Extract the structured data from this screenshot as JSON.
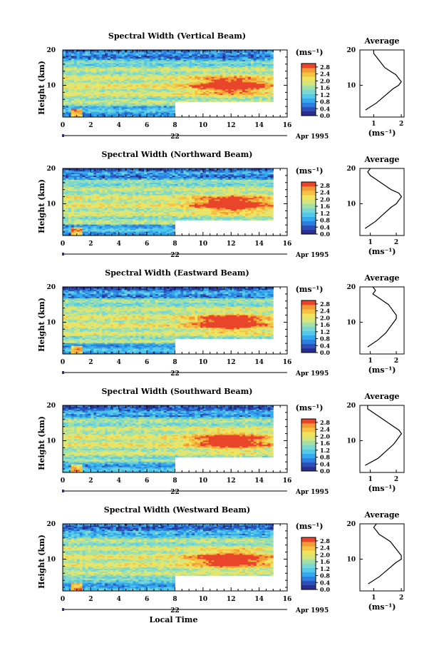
{
  "figure": {
    "xlabel": "Local Time",
    "date_day": "22",
    "date_label": "Apr 1995",
    "colorbar_unit": "(ms⁻¹)",
    "average_title": "Average",
    "average_xunit": "(ms⁻¹)"
  },
  "colors": {
    "colormap": [
      "#2a2e8e",
      "#2f4fb8",
      "#2a7fe0",
      "#33aaee",
      "#55c8e8",
      "#7ad8d0",
      "#a6e0a4",
      "#d6e67c",
      "#f0e45e",
      "#f6c244",
      "#f29a33",
      "#e8452a"
    ]
  },
  "chart_data": [
    {
      "type": "heatmap",
      "title": "Spectral Width (Vertical Beam)",
      "ylabel": "Height (km)",
      "x_ticks": [
        "0",
        "2",
        "4",
        "6",
        "8",
        "10",
        "12",
        "14",
        "16"
      ],
      "y_ticks": [
        "10",
        "20"
      ],
      "colorbar_ticks": [
        "2.8",
        "2.4",
        "2.0",
        "1.6",
        "1.2",
        "0.8",
        "0.4",
        "0.0"
      ],
      "xlim": [
        0,
        16
      ],
      "ylim": [
        1,
        20
      ],
      "clim": [
        0,
        3.0
      ],
      "data_x_end": 15,
      "missing_below_km_after_hour_8": 5.5,
      "heights_km": [
        3,
        5,
        7,
        9,
        10,
        11,
        12,
        13,
        14,
        15,
        16,
        17,
        18,
        19,
        20
      ],
      "average_width": [
        0.7,
        1.1,
        1.4,
        1.7,
        1.9,
        2.0,
        1.9,
        1.8,
        1.6,
        1.4,
        1.3,
        1.2,
        1.1,
        1.0,
        1.0
      ],
      "average_xticks": [
        "1",
        "2"
      ],
      "average_xlim": [
        0.5,
        2.1
      ]
    },
    {
      "type": "heatmap",
      "title": "Spectral Width (Northward Beam)",
      "ylabel": "Height (km)",
      "x_ticks": [
        "0",
        "2",
        "4",
        "6",
        "8",
        "10",
        "12",
        "14",
        "16"
      ],
      "y_ticks": [
        "10",
        "20"
      ],
      "colorbar_ticks": [
        "2.8",
        "2.4",
        "2.0",
        "1.6",
        "1.2",
        "0.8",
        "0.4",
        "0.0"
      ],
      "xlim": [
        0,
        16
      ],
      "ylim": [
        1,
        20
      ],
      "clim": [
        0,
        3.0
      ],
      "data_x_end": 15,
      "missing_below_km_after_hour_8": 5.5,
      "heights_km": [
        3,
        5,
        7,
        9,
        10,
        11,
        12,
        13,
        14,
        15,
        16,
        17,
        18,
        19,
        20
      ],
      "average_width": [
        0.8,
        1.2,
        1.5,
        1.8,
        2.0,
        2.1,
        2.2,
        2.1,
        1.8,
        1.6,
        1.4,
        1.2,
        1.0,
        0.9,
        1.0
      ],
      "average_xticks": [
        "1",
        "2"
      ],
      "average_xlim": [
        0.6,
        2.3
      ]
    },
    {
      "type": "heatmap",
      "title": "Spectral Width (Eastward Beam)",
      "ylabel": "Height (km)",
      "x_ticks": [
        "0",
        "2",
        "4",
        "6",
        "8",
        "10",
        "12",
        "14",
        "16"
      ],
      "y_ticks": [
        "10",
        "20"
      ],
      "colorbar_ticks": [
        "2.8",
        "2.4",
        "2.0",
        "1.6",
        "1.2",
        "0.8",
        "0.4",
        "0.0"
      ],
      "xlim": [
        0,
        16
      ],
      "ylim": [
        1,
        20
      ],
      "clim": [
        0,
        3.0
      ],
      "data_x_end": 15,
      "missing_below_km_after_hour_8": 5.5,
      "heights_km": [
        3,
        5,
        7,
        9,
        10,
        11,
        12,
        13,
        14,
        15,
        16,
        17,
        18,
        19,
        20
      ],
      "average_width": [
        0.9,
        1.3,
        1.6,
        1.8,
        1.9,
        2.0,
        2.0,
        1.9,
        1.8,
        1.7,
        1.5,
        1.3,
        1.1,
        1.2,
        1.1
      ],
      "average_xticks": [
        "1",
        "2"
      ],
      "average_xlim": [
        0.6,
        2.3
      ]
    },
    {
      "type": "heatmap",
      "title": "Spectral Width (Southward Beam)",
      "ylabel": "Height (km)",
      "x_ticks": [
        "0",
        "2",
        "4",
        "6",
        "8",
        "10",
        "12",
        "14",
        "16"
      ],
      "y_ticks": [
        "10",
        "20"
      ],
      "colorbar_ticks": [
        "2.8",
        "2.4",
        "2.0",
        "1.6",
        "1.2",
        "0.8",
        "0.4",
        "0.0"
      ],
      "xlim": [
        0,
        16
      ],
      "ylim": [
        1,
        20
      ],
      "clim": [
        0,
        3.0
      ],
      "data_x_end": 15,
      "missing_below_km_after_hour_8": 5.5,
      "heights_km": [
        3,
        5,
        7,
        9,
        10,
        11,
        12,
        13,
        14,
        15,
        16,
        17,
        18,
        19,
        20
      ],
      "average_width": [
        0.8,
        1.3,
        1.6,
        1.9,
        2.0,
        2.1,
        2.2,
        2.1,
        1.9,
        1.7,
        1.5,
        1.3,
        1.1,
        0.9,
        0.9
      ],
      "average_xticks": [
        "1",
        "2"
      ],
      "average_xlim": [
        0.6,
        2.3
      ]
    },
    {
      "type": "heatmap",
      "title": "Spectral Width (Westward Beam)",
      "ylabel": "Height (km)",
      "x_ticks": [
        "0",
        "2",
        "4",
        "6",
        "8",
        "10",
        "12",
        "14",
        "16"
      ],
      "y_ticks": [
        "10",
        "20"
      ],
      "colorbar_ticks": [
        "2.8",
        "2.4",
        "2.0",
        "1.6",
        "1.2",
        "0.8",
        "0.4",
        "0.0"
      ],
      "xlim": [
        0,
        16
      ],
      "ylim": [
        1,
        20
      ],
      "clim": [
        0,
        3.0
      ],
      "data_x_end": 15,
      "missing_below_km_after_hour_8": 5.5,
      "heights_km": [
        3,
        5,
        7,
        9,
        10,
        11,
        12,
        13,
        14,
        15,
        16,
        17,
        18,
        19,
        20
      ],
      "average_width": [
        0.8,
        1.2,
        1.5,
        1.8,
        2.0,
        2.0,
        1.9,
        1.8,
        1.7,
        1.6,
        1.4,
        1.2,
        1.1,
        1.0,
        1.1
      ],
      "average_xticks": [
        "1",
        "2"
      ],
      "average_xlim": [
        0.5,
        2.1
      ]
    }
  ]
}
